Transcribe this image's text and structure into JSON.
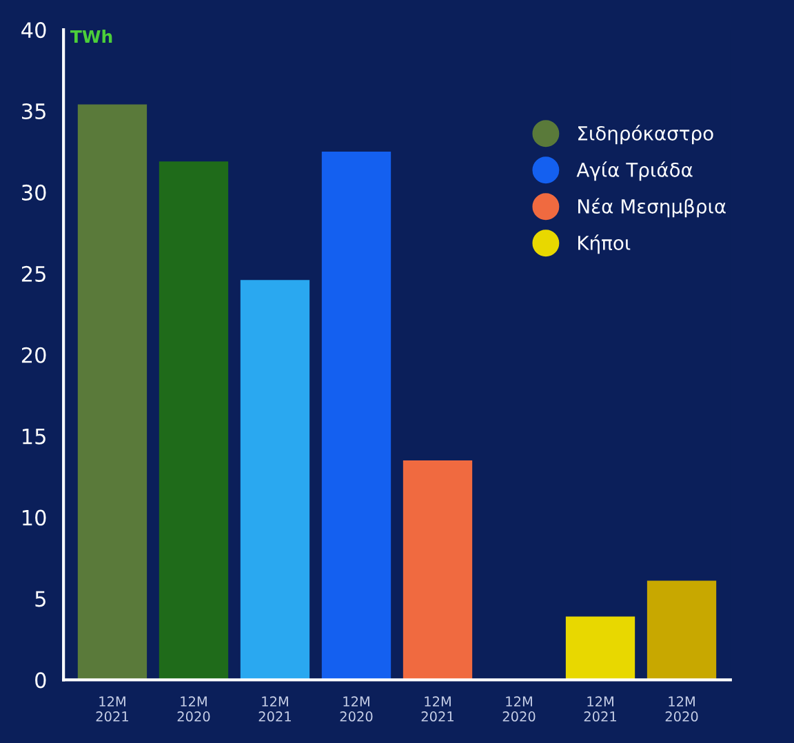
{
  "chart_data": {
    "type": "bar",
    "ylabel": "TWh",
    "categories": [
      "12M\n2021",
      "12M\n2020",
      "12M\n2021",
      "12M\n2020",
      "12M\n2021",
      "12M\n2020",
      "12M\n2021",
      "12M\n2020"
    ],
    "series": [
      {
        "name": "Σιδηρόκαστρο",
        "color": "#5a7a3a",
        "colors": [
          "#5a7a3a",
          "#1f6b1a",
          null,
          null,
          null,
          null,
          null,
          null
        ],
        "values": [
          35.4,
          31.9,
          null,
          null,
          null,
          null,
          null,
          null
        ]
      },
      {
        "name": "Αγία Τριάδα",
        "color": "#1460f0",
        "colors": [
          null,
          null,
          "#2aa8f0",
          "#1460f0",
          null,
          null,
          null,
          null
        ],
        "values": [
          null,
          null,
          24.6,
          32.5,
          null,
          null,
          null,
          null
        ]
      },
      {
        "name": "Νέα Μεσημβρια",
        "color": "#f06a40",
        "colors": [
          null,
          null,
          null,
          null,
          "#f06a40",
          null,
          null,
          null
        ],
        "values": [
          null,
          null,
          null,
          null,
          13.5,
          null,
          null,
          null
        ]
      },
      {
        "name": "Κήποι",
        "color": "#e8d800",
        "colors": [
          null,
          null,
          null,
          null,
          null,
          null,
          "#e8d800",
          "#c8a800"
        ],
        "values": [
          null,
          null,
          null,
          null,
          null,
          null,
          3.9,
          6.1
        ]
      }
    ],
    "ylim": [
      0,
      40
    ],
    "yticks": [
      0,
      5,
      10,
      15,
      20,
      25,
      30,
      35,
      40
    ],
    "grid": false,
    "legend": "right"
  }
}
